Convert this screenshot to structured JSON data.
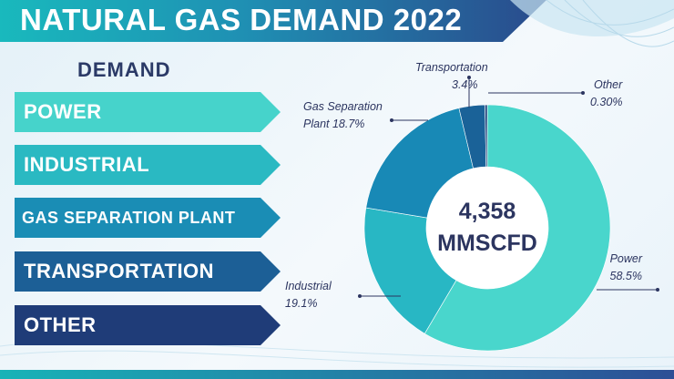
{
  "title": "NATURAL GAS DEMAND 2022",
  "demand_heading": "DEMAND",
  "arrows": [
    {
      "label": "POWER",
      "color": "#46d3cb"
    },
    {
      "label": "INDUSTRIAL",
      "color": "#2ab9c2"
    },
    {
      "label": "GAS SEPARATION PLANT",
      "color": "#1a8db5"
    },
    {
      "label": "TRANSPORTATION",
      "color": "#1c5f96"
    },
    {
      "label": "OTHER",
      "color": "#1f3c78"
    }
  ],
  "chart_data": {
    "type": "pie",
    "style": "donut",
    "center_value": "4,358",
    "center_unit": "MMSCFD",
    "slices": [
      {
        "label": "Power",
        "value": 58.5,
        "display": "58.5%",
        "color": "#49d6cc"
      },
      {
        "label": "Industrial",
        "value": 19.1,
        "display": "19.1%",
        "color": "#28b7c4"
      },
      {
        "label": "Gas Separation Plant",
        "value": 18.7,
        "display": "18.7%",
        "color": "#1889b6"
      },
      {
        "label": "Transportation",
        "value": 3.4,
        "display": "3.4%",
        "color": "#1a6298"
      },
      {
        "label": "Other",
        "value": 0.3,
        "display": "0.30%",
        "color": "#1e3f7a"
      }
    ],
    "annotations": {
      "power": [
        "Power",
        "58.5%"
      ],
      "industrial": [
        "Industrial",
        "19.1%"
      ],
      "gas_separation": [
        "Gas Separation",
        "Plant  18.7%"
      ],
      "transportation": [
        "Transportation",
        "3.4%"
      ],
      "other": [
        "Other",
        "0.30%"
      ]
    }
  }
}
